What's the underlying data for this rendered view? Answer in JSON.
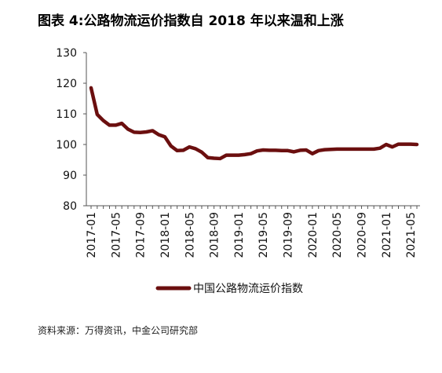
{
  "title": "图表 4:公路物流运价指数自 2018 年以来温和上涨",
  "source": "资料来源：万得资讯，中金公司研究部",
  "chart_data": {
    "type": "line",
    "title": "图表 4:公路物流运价指数自 2018 年以来温和上涨",
    "xlabel": "",
    "ylabel": "",
    "ylim": [
      80,
      130
    ],
    "yticks": [
      80,
      90,
      100,
      110,
      120,
      130
    ],
    "grid": false,
    "legend_position": "bottom-center",
    "x_tick_labels": [
      "2017-01",
      "2017-05",
      "2017-09",
      "2018-01",
      "2018-05",
      "2018-09",
      "2019-01",
      "2019-05",
      "2019-09",
      "2020-01",
      "2020-05",
      "2020-09",
      "2021-01",
      "2021-05"
    ],
    "x": [
      "2017-01",
      "2017-02",
      "2017-03",
      "2017-04",
      "2017-05",
      "2017-06",
      "2017-07",
      "2017-08",
      "2017-09",
      "2017-10",
      "2017-11",
      "2017-12",
      "2018-01",
      "2018-02",
      "2018-03",
      "2018-04",
      "2018-05",
      "2018-06",
      "2018-07",
      "2018-08",
      "2018-09",
      "2018-10",
      "2018-11",
      "2018-12",
      "2019-01",
      "2019-02",
      "2019-03",
      "2019-04",
      "2019-05",
      "2019-06",
      "2019-07",
      "2019-08",
      "2019-09",
      "2019-10",
      "2019-11",
      "2019-12",
      "2020-01",
      "2020-02",
      "2020-03",
      "2020-04",
      "2020-05",
      "2020-06",
      "2020-07",
      "2020-08",
      "2020-09",
      "2020-10",
      "2020-11",
      "2020-12",
      "2021-01",
      "2021-02",
      "2021-03",
      "2021-04",
      "2021-05",
      "2021-06"
    ],
    "series": [
      {
        "name": "中国公路物流运价指数",
        "color": "#6b0f0f",
        "values": [
          118.5,
          109.8,
          107.8,
          106.3,
          106.3,
          106.9,
          105.0,
          104.0,
          103.9,
          104.1,
          104.5,
          103.2,
          102.5,
          99.5,
          98.0,
          98.1,
          99.2,
          98.6,
          97.5,
          95.7,
          95.5,
          95.4,
          96.5,
          96.5,
          96.5,
          96.7,
          97.0,
          97.9,
          98.2,
          98.1,
          98.1,
          98.0,
          98.0,
          97.6,
          98.1,
          98.2,
          97.0,
          98.0,
          98.3,
          98.4,
          98.5,
          98.5,
          98.5,
          98.5,
          98.5,
          98.5,
          98.5,
          98.8,
          100.0,
          99.2,
          100.1,
          100.1,
          100.1,
          100.0
        ]
      }
    ]
  }
}
